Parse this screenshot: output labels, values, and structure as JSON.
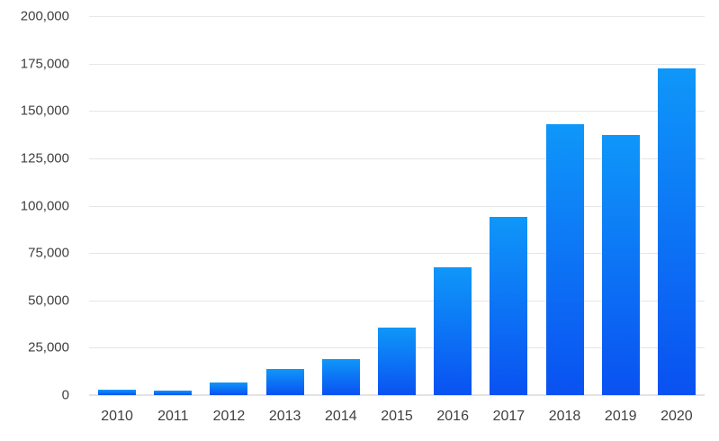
{
  "chart_data": {
    "type": "bar",
    "title": "",
    "xlabel": "",
    "ylabel": "",
    "categories": [
      "2010",
      "2011",
      "2012",
      "2013",
      "2014",
      "2015",
      "2016",
      "2017",
      "2018",
      "2019",
      "2020"
    ],
    "values": [
      2900,
      2600,
      6500,
      14000,
      19000,
      35500,
      67500,
      94000,
      143000,
      137500,
      172500
    ],
    "ylim": [
      0,
      200000
    ],
    "ytick_interval": 25000,
    "yticks": [
      {
        "value": 0,
        "label": "0"
      },
      {
        "value": 25000,
        "label": "25,000"
      },
      {
        "value": 50000,
        "label": "50,000"
      },
      {
        "value": 75000,
        "label": "75,000"
      },
      {
        "value": 100000,
        "label": "100,000"
      },
      {
        "value": 125000,
        "label": "125,000"
      },
      {
        "value": 150000,
        "label": "150,000"
      },
      {
        "value": 175000,
        "label": "175,000"
      },
      {
        "value": 200000,
        "label": "200,000"
      }
    ],
    "grid": true,
    "legend": false,
    "colors": {
      "bar_gradient_top": "#0f97f9",
      "bar_gradient_bottom": "#0a51f1",
      "gridline": "#e6e6e6",
      "axis_line": "#e3e3e3",
      "tick_label": "#404040",
      "background": "#ffffff"
    }
  }
}
